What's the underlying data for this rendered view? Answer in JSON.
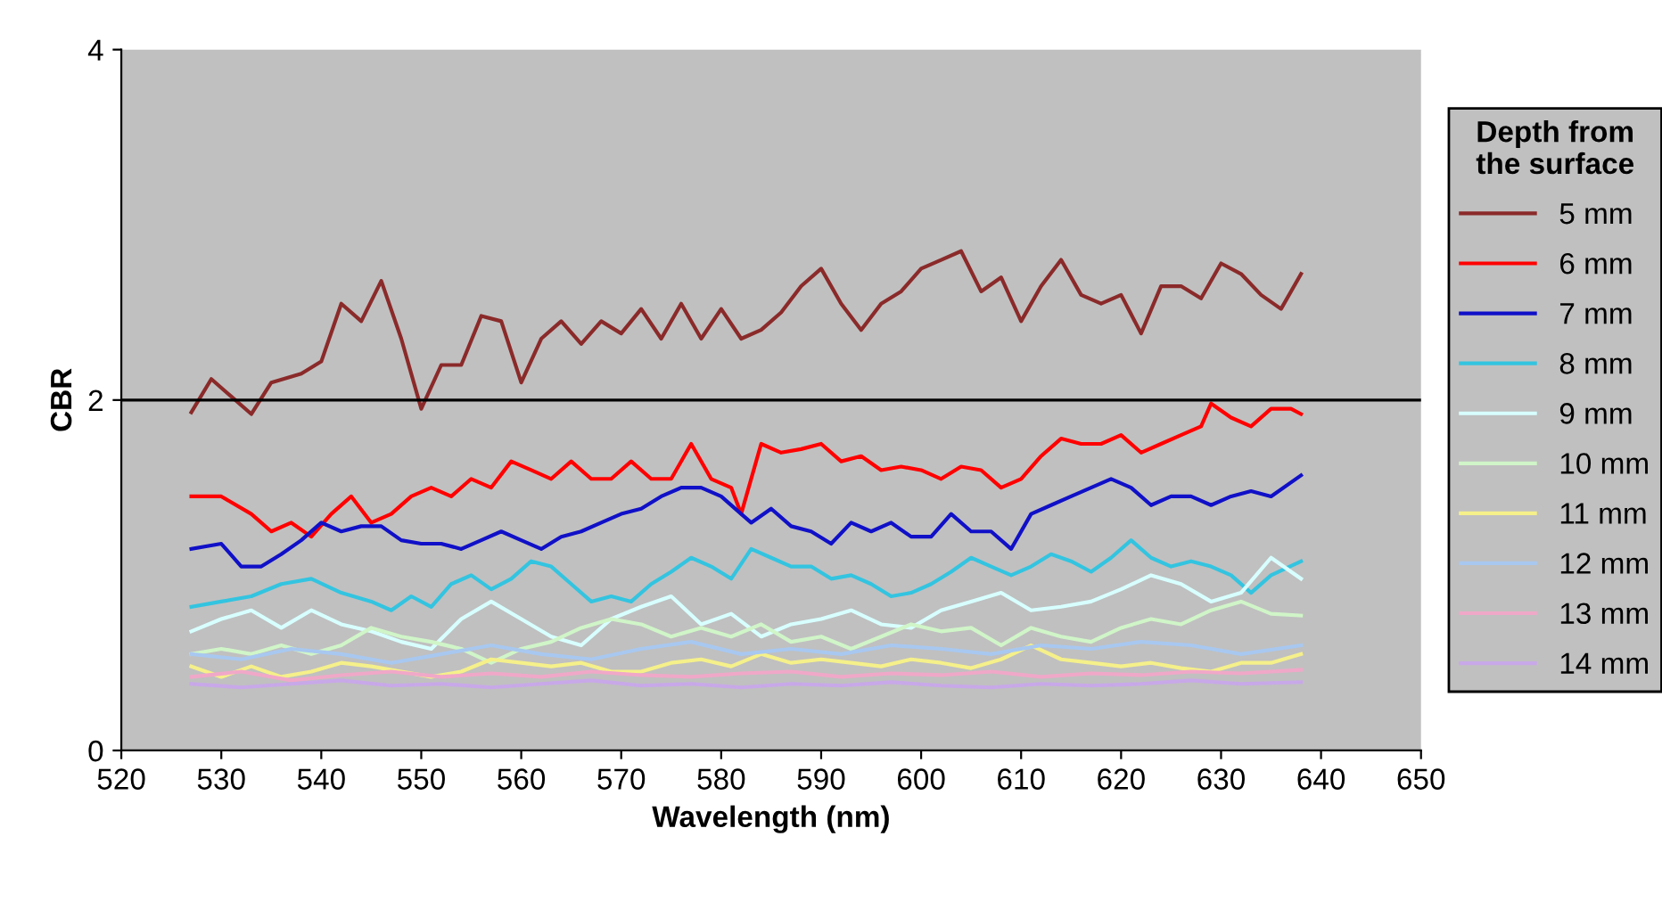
{
  "chart_data": {
    "type": "line",
    "xlabel": "Wavelength (nm)",
    "ylabel": "CBR",
    "legend_title": "Depth from\nthe surface",
    "legend": "right",
    "grid": false,
    "xlim": [
      520,
      650
    ],
    "xticks": [
      520,
      530,
      540,
      550,
      560,
      570,
      580,
      590,
      600,
      610,
      620,
      630,
      640,
      650
    ],
    "ylim": [
      0,
      4
    ],
    "yticks": [
      0,
      2,
      4
    ],
    "ref_lines": [
      {
        "axis": "y",
        "value": 2,
        "color": "#000000"
      }
    ],
    "series": [
      {
        "name": "5 mm",
        "color": "#8b2a2a",
        "x": [
          527,
          529,
          531,
          533,
          535,
          538,
          540,
          542,
          544,
          546,
          548,
          550,
          552,
          554,
          556,
          558,
          560,
          562,
          564,
          566,
          568,
          570,
          572,
          574,
          576,
          578,
          580,
          582,
          584,
          586,
          588,
          590,
          592,
          594,
          596,
          598,
          600,
          602,
          604,
          606,
          608,
          610,
          612,
          614,
          616,
          618,
          620,
          622,
          624,
          626,
          628,
          630,
          632,
          634,
          636,
          638
        ],
        "values": [
          1.93,
          2.12,
          2.02,
          1.92,
          2.1,
          2.15,
          2.22,
          2.55,
          2.45,
          2.68,
          2.35,
          1.95,
          2.2,
          2.2,
          2.48,
          2.45,
          2.1,
          2.35,
          2.45,
          2.32,
          2.45,
          2.38,
          2.52,
          2.35,
          2.55,
          2.35,
          2.52,
          2.35,
          2.4,
          2.5,
          2.65,
          2.75,
          2.55,
          2.4,
          2.55,
          2.62,
          2.75,
          2.8,
          2.85,
          2.62,
          2.7,
          2.45,
          2.65,
          2.8,
          2.6,
          2.55,
          2.6,
          2.38,
          2.65,
          2.65,
          2.58,
          2.78,
          2.72,
          2.6,
          2.52,
          2.72
        ]
      },
      {
        "name": "6 mm",
        "color": "#ff0000",
        "x": [
          527,
          530,
          533,
          535,
          537,
          539,
          541,
          543,
          545,
          547,
          549,
          551,
          553,
          555,
          557,
          559,
          561,
          563,
          565,
          567,
          569,
          571,
          573,
          575,
          577,
          579,
          581,
          582,
          584,
          586,
          588,
          590,
          592,
          594,
          596,
          598,
          600,
          602,
          604,
          606,
          608,
          610,
          612,
          614,
          616,
          618,
          620,
          622,
          624,
          626,
          628,
          629,
          631,
          633,
          635,
          637,
          638
        ],
        "values": [
          1.45,
          1.45,
          1.35,
          1.25,
          1.3,
          1.22,
          1.35,
          1.45,
          1.3,
          1.35,
          1.45,
          1.5,
          1.45,
          1.55,
          1.5,
          1.65,
          1.6,
          1.55,
          1.65,
          1.55,
          1.55,
          1.65,
          1.55,
          1.55,
          1.75,
          1.55,
          1.5,
          1.35,
          1.75,
          1.7,
          1.72,
          1.75,
          1.65,
          1.68,
          1.6,
          1.62,
          1.6,
          1.55,
          1.62,
          1.6,
          1.5,
          1.55,
          1.68,
          1.78,
          1.75,
          1.75,
          1.8,
          1.7,
          1.75,
          1.8,
          1.85,
          1.98,
          1.9,
          1.85,
          1.95,
          1.95,
          1.92
        ]
      },
      {
        "name": "7 mm",
        "color": "#1010c8",
        "x": [
          527,
          530,
          532,
          534,
          536,
          538,
          540,
          542,
          544,
          546,
          548,
          550,
          552,
          554,
          556,
          558,
          560,
          562,
          564,
          566,
          568,
          570,
          572,
          574,
          576,
          578,
          580,
          582,
          583,
          585,
          587,
          589,
          591,
          593,
          595,
          597,
          599,
          601,
          603,
          605,
          607,
          609,
          611,
          613,
          615,
          617,
          619,
          621,
          623,
          625,
          627,
          629,
          631,
          633,
          635,
          638
        ],
        "values": [
          1.15,
          1.18,
          1.05,
          1.05,
          1.12,
          1.2,
          1.3,
          1.25,
          1.28,
          1.28,
          1.2,
          1.18,
          1.18,
          1.15,
          1.2,
          1.25,
          1.2,
          1.15,
          1.22,
          1.25,
          1.3,
          1.35,
          1.38,
          1.45,
          1.5,
          1.5,
          1.45,
          1.35,
          1.3,
          1.38,
          1.28,
          1.25,
          1.18,
          1.3,
          1.25,
          1.3,
          1.22,
          1.22,
          1.35,
          1.25,
          1.25,
          1.15,
          1.35,
          1.4,
          1.45,
          1.5,
          1.55,
          1.5,
          1.4,
          1.45,
          1.45,
          1.4,
          1.45,
          1.48,
          1.45,
          1.57
        ]
      },
      {
        "name": "8 mm",
        "color": "#33c4e0",
        "x": [
          527,
          530,
          533,
          536,
          539,
          542,
          545,
          547,
          549,
          551,
          553,
          555,
          557,
          559,
          561,
          563,
          565,
          567,
          569,
          571,
          573,
          575,
          577,
          579,
          581,
          583,
          585,
          587,
          589,
          591,
          593,
          595,
          597,
          599,
          601,
          603,
          605,
          607,
          609,
          611,
          613,
          615,
          617,
          619,
          621,
          623,
          625,
          627,
          629,
          631,
          633,
          635,
          638
        ],
        "values": [
          0.82,
          0.85,
          0.88,
          0.95,
          0.98,
          0.9,
          0.85,
          0.8,
          0.88,
          0.82,
          0.95,
          1.0,
          0.92,
          0.98,
          1.08,
          1.05,
          0.95,
          0.85,
          0.88,
          0.85,
          0.95,
          1.02,
          1.1,
          1.05,
          0.98,
          1.15,
          1.1,
          1.05,
          1.05,
          0.98,
          1.0,
          0.95,
          0.88,
          0.9,
          0.95,
          1.02,
          1.1,
          1.05,
          1.0,
          1.05,
          1.12,
          1.08,
          1.02,
          1.1,
          1.2,
          1.1,
          1.05,
          1.08,
          1.05,
          1.0,
          0.9,
          1.0,
          1.08
        ]
      },
      {
        "name": "9 mm",
        "color": "#d8ffff",
        "x": [
          527,
          530,
          533,
          536,
          539,
          542,
          545,
          548,
          551,
          554,
          557,
          560,
          563,
          566,
          569,
          572,
          575,
          578,
          581,
          584,
          587,
          590,
          593,
          596,
          599,
          602,
          605,
          608,
          611,
          614,
          617,
          620,
          623,
          626,
          629,
          632,
          635,
          638
        ],
        "values": [
          0.68,
          0.75,
          0.8,
          0.7,
          0.8,
          0.72,
          0.68,
          0.62,
          0.58,
          0.75,
          0.85,
          0.75,
          0.65,
          0.6,
          0.75,
          0.82,
          0.88,
          0.72,
          0.78,
          0.65,
          0.72,
          0.75,
          0.8,
          0.72,
          0.7,
          0.8,
          0.85,
          0.9,
          0.8,
          0.82,
          0.85,
          0.92,
          1.0,
          0.95,
          0.85,
          0.9,
          1.1,
          0.98
        ]
      },
      {
        "name": "10 mm",
        "color": "#d0f5c8",
        "x": [
          527,
          530,
          533,
          536,
          539,
          542,
          545,
          548,
          551,
          554,
          557,
          560,
          563,
          566,
          569,
          572,
          575,
          578,
          581,
          584,
          587,
          590,
          593,
          596,
          599,
          602,
          605,
          608,
          611,
          614,
          617,
          620,
          623,
          626,
          629,
          632,
          635,
          638
        ],
        "values": [
          0.55,
          0.58,
          0.55,
          0.6,
          0.55,
          0.6,
          0.7,
          0.65,
          0.62,
          0.58,
          0.5,
          0.58,
          0.62,
          0.7,
          0.75,
          0.72,
          0.65,
          0.7,
          0.65,
          0.72,
          0.62,
          0.65,
          0.58,
          0.65,
          0.72,
          0.68,
          0.7,
          0.6,
          0.7,
          0.65,
          0.62,
          0.7,
          0.75,
          0.72,
          0.8,
          0.85,
          0.78,
          0.77
        ]
      },
      {
        "name": "11 mm",
        "color": "#f5f08a",
        "x": [
          527,
          530,
          533,
          536,
          539,
          542,
          545,
          548,
          551,
          554,
          557,
          560,
          563,
          566,
          569,
          572,
          575,
          578,
          581,
          584,
          587,
          590,
          593,
          596,
          599,
          602,
          605,
          608,
          611,
          614,
          617,
          620,
          623,
          626,
          629,
          632,
          635,
          638
        ],
        "values": [
          0.48,
          0.42,
          0.48,
          0.42,
          0.45,
          0.5,
          0.48,
          0.45,
          0.42,
          0.45,
          0.52,
          0.5,
          0.48,
          0.5,
          0.45,
          0.45,
          0.5,
          0.52,
          0.48,
          0.55,
          0.5,
          0.52,
          0.5,
          0.48,
          0.52,
          0.5,
          0.47,
          0.52,
          0.6,
          0.52,
          0.5,
          0.48,
          0.5,
          0.47,
          0.45,
          0.5,
          0.5,
          0.55
        ]
      },
      {
        "name": "12 mm",
        "color": "#a8c8f0",
        "x": [
          527,
          532,
          537,
          542,
          547,
          552,
          557,
          562,
          567,
          572,
          577,
          582,
          587,
          592,
          597,
          602,
          607,
          612,
          617,
          622,
          627,
          632,
          638
        ],
        "values": [
          0.55,
          0.52,
          0.58,
          0.55,
          0.5,
          0.55,
          0.6,
          0.55,
          0.52,
          0.58,
          0.62,
          0.55,
          0.58,
          0.55,
          0.6,
          0.58,
          0.55,
          0.6,
          0.58,
          0.62,
          0.6,
          0.55,
          0.6
        ]
      },
      {
        "name": "13 mm",
        "color": "#f0a8c8",
        "x": [
          527,
          532,
          537,
          542,
          547,
          552,
          557,
          562,
          567,
          572,
          577,
          582,
          587,
          592,
          597,
          602,
          607,
          612,
          617,
          622,
          627,
          632,
          638
        ],
        "values": [
          0.42,
          0.45,
          0.4,
          0.43,
          0.45,
          0.42,
          0.44,
          0.42,
          0.45,
          0.43,
          0.42,
          0.44,
          0.45,
          0.42,
          0.44,
          0.43,
          0.45,
          0.42,
          0.44,
          0.43,
          0.45,
          0.44,
          0.46
        ]
      },
      {
        "name": "14 mm",
        "color": "#c8a8e8",
        "x": [
          527,
          532,
          537,
          542,
          547,
          552,
          557,
          562,
          567,
          572,
          577,
          582,
          587,
          592,
          597,
          602,
          607,
          612,
          617,
          622,
          627,
          632,
          638
        ],
        "values": [
          0.38,
          0.36,
          0.38,
          0.4,
          0.37,
          0.38,
          0.36,
          0.38,
          0.4,
          0.37,
          0.38,
          0.36,
          0.38,
          0.37,
          0.39,
          0.37,
          0.36,
          0.38,
          0.37,
          0.38,
          0.4,
          0.38,
          0.39
        ]
      }
    ]
  }
}
